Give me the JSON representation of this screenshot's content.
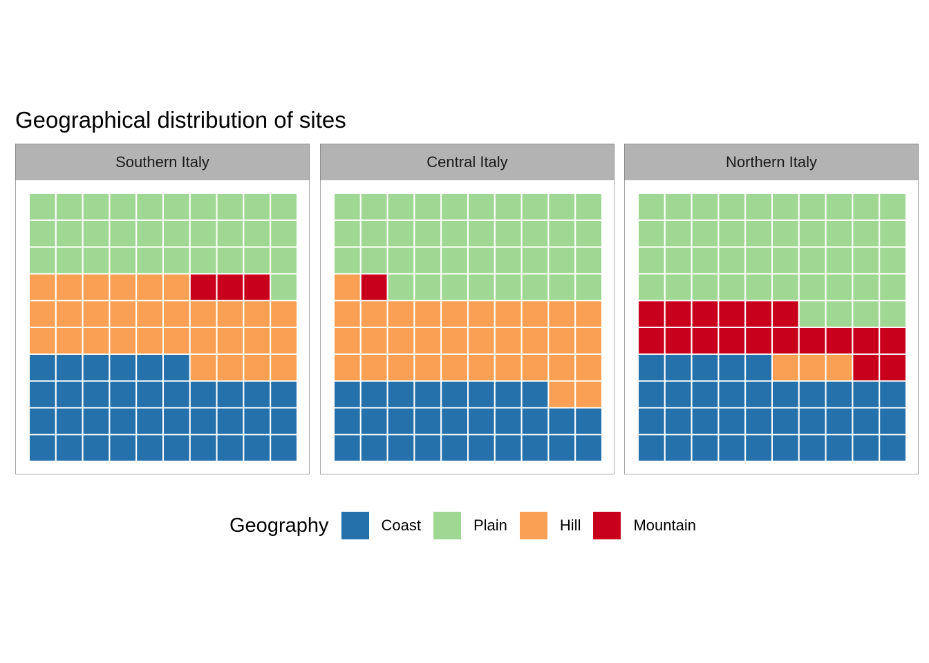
{
  "chart_data": {
    "type": "waffle",
    "title": "Geographical distribution of sites",
    "grid": {
      "rows": 10,
      "cols": 10,
      "units_per_panel": 100
    },
    "fill_order": "column-wise within each row, starting bottom-left",
    "legend": {
      "title": "Geography",
      "position": "bottom",
      "categories": [
        {
          "key": "coast",
          "label": "Coast",
          "color": "#2471ab"
        },
        {
          "key": "plain",
          "label": "Plain",
          "color": "#9fd893"
        },
        {
          "key": "hill",
          "label": "Hill",
          "color": "#f9a054"
        },
        {
          "key": "mountain",
          "label": "Mountain",
          "color": "#c9001c"
        }
      ]
    },
    "facets": [
      {
        "label": "Southern Italy",
        "values": {
          "Coast": 36,
          "Hill": 30,
          "Mountain": 3,
          "Plain": 31
        }
      },
      {
        "label": "Central Italy",
        "values": {
          "Coast": 28,
          "Hill": 33,
          "Mountain": 1,
          "Plain": 38
        }
      },
      {
        "label": "Northern Italy",
        "values": {
          "Coast": 35,
          "Hill": 3,
          "Mountain": 18,
          "Plain": 44
        }
      }
    ]
  }
}
